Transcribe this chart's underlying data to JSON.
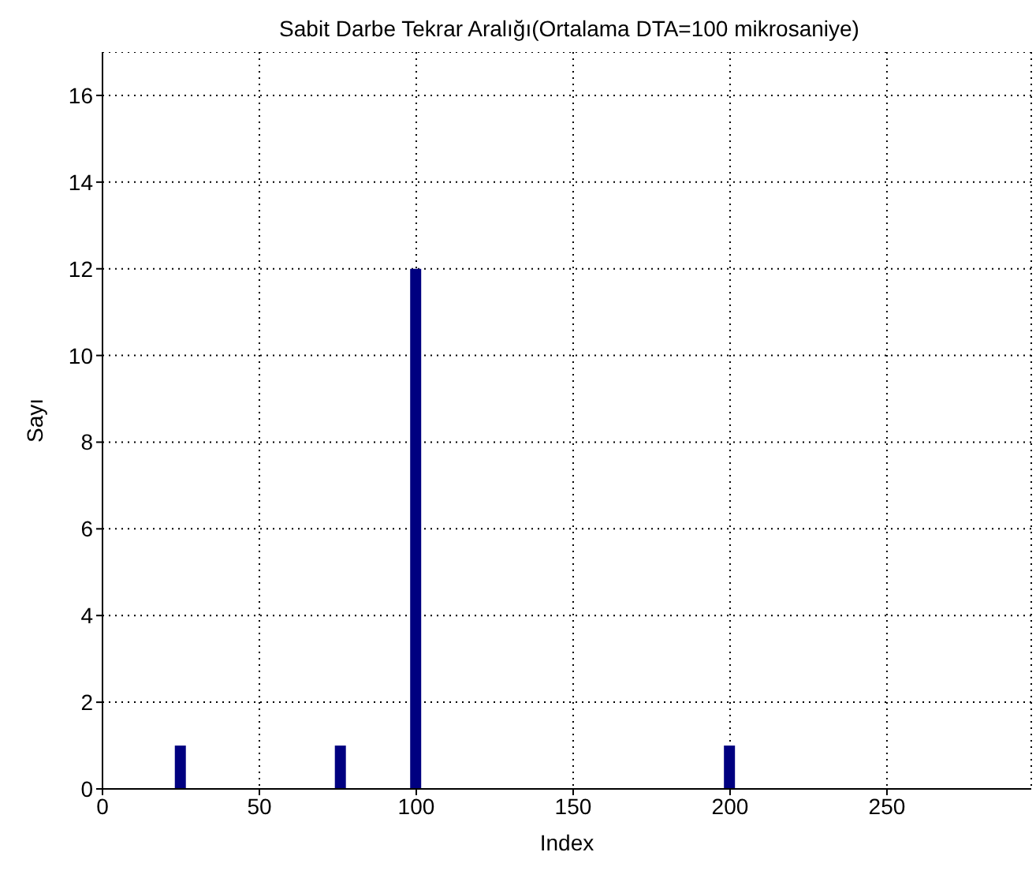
{
  "chart_data": {
    "type": "bar",
    "title": "Sabit Darbe Tekrar Aralığı(Ortalama DTA=100 mikrosaniye)",
    "xlabel": "Index",
    "ylabel": "Sayı",
    "x": [
      25,
      76,
      100,
      200
    ],
    "values": [
      1,
      1,
      12,
      1
    ],
    "color": "#000080",
    "xlim": [
      0,
      296
    ],
    "xticks": [
      0,
      50,
      100,
      150,
      200,
      250
    ],
    "ylim": [
      0,
      17
    ],
    "yticks": [
      0,
      2,
      4,
      6,
      8,
      10,
      12,
      14,
      16
    ],
    "grid": true
  }
}
